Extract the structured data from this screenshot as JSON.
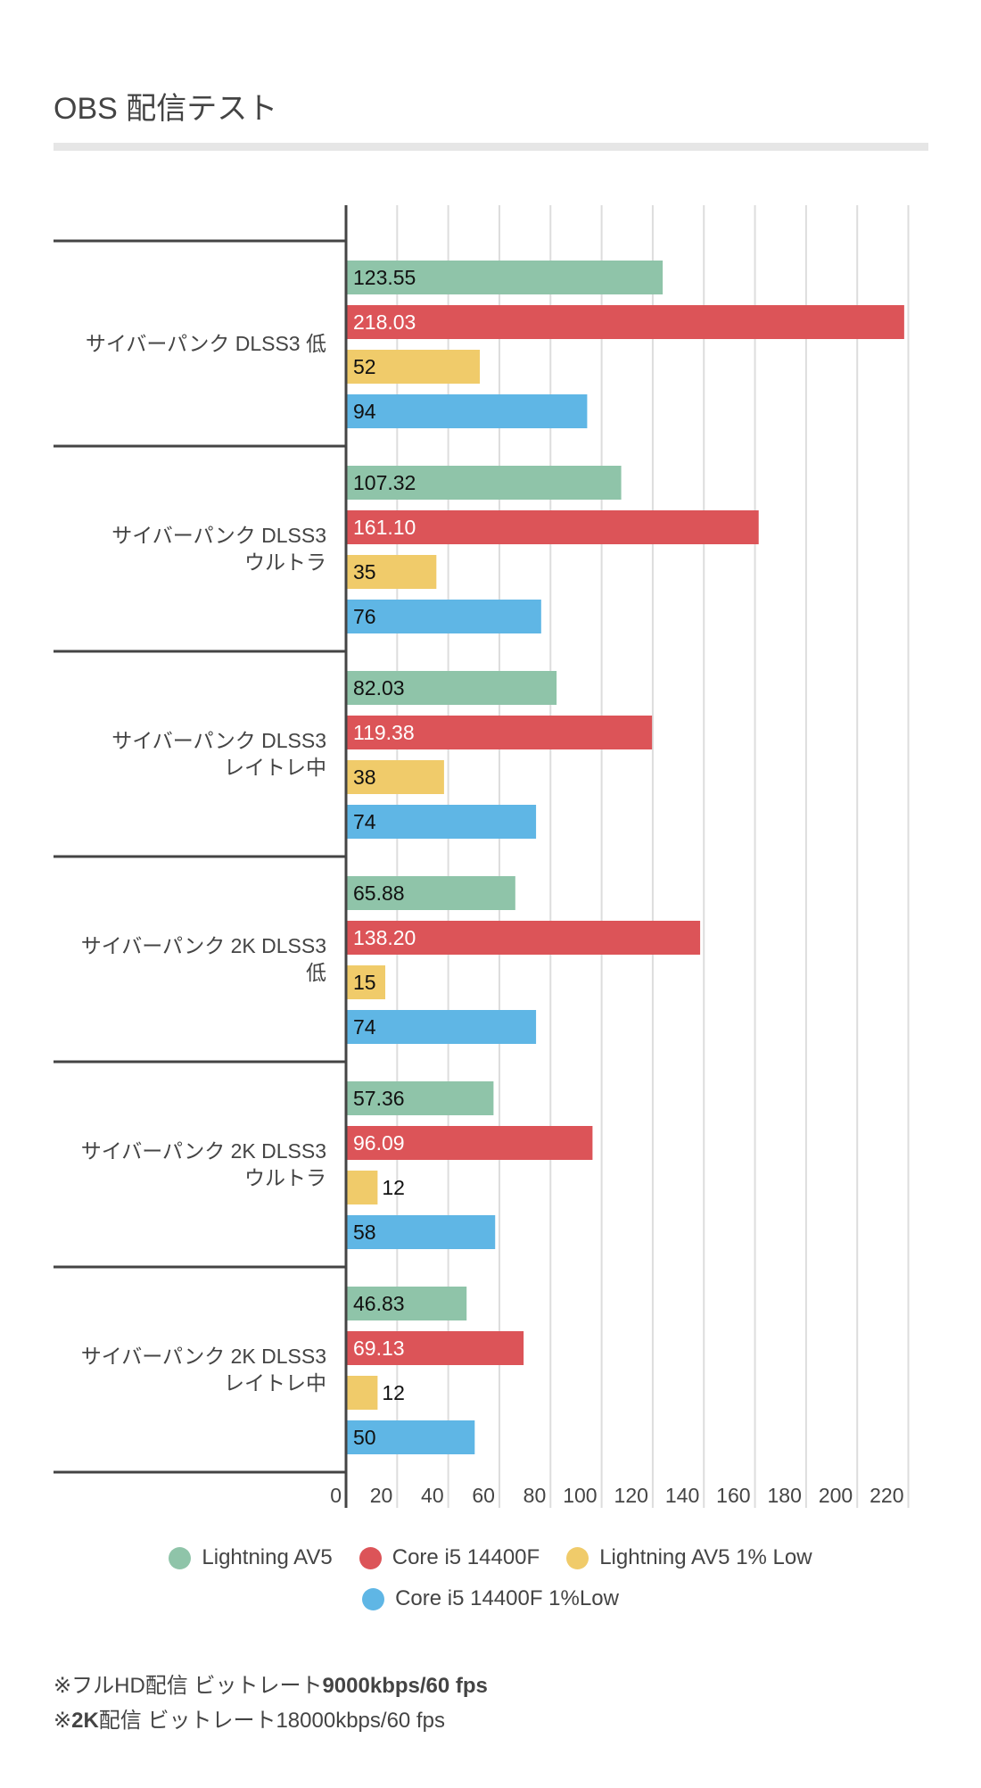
{
  "title": "OBS 配信テスト",
  "colors": {
    "series": [
      "#8fc4a9",
      "#dc5458",
      "#f0cb6a",
      "#5fb6e5"
    ],
    "axis": "#444444",
    "grid": "#dddddd",
    "title_rule": "#e6e6e6"
  },
  "chart_data": {
    "type": "bar",
    "orientation": "horizontal",
    "title": "OBS 配信テスト",
    "categories": [
      [
        "サイバーパンク DLSS3 低"
      ],
      [
        "サイバーパンク DLSS3",
        "ウルトラ"
      ],
      [
        "サイバーパンク DLSS3",
        "レイトレ中"
      ],
      [
        "サイバーパンク 2K DLSS3",
        "低"
      ],
      [
        "サイバーパンク 2K DLSS3",
        "ウルトラ"
      ],
      [
        "サイバーパンク 2K DLSS3",
        "レイトレ中"
      ]
    ],
    "series": [
      {
        "name": "Lightning AV5",
        "values": [
          123.55,
          107.32,
          82.03,
          65.88,
          57.36,
          46.83
        ],
        "labels": [
          "123.55",
          "107.32",
          "82.03",
          "65.88",
          "57.36",
          "46.83"
        ]
      },
      {
        "name": "Core i5 14400F",
        "values": [
          218.03,
          161.1,
          119.38,
          138.2,
          96.09,
          69.13
        ],
        "labels": [
          "218.03",
          "161.10",
          "119.38",
          "138.20",
          "96.09",
          "69.13"
        ]
      },
      {
        "name": "Lightning AV5 1% Low",
        "values": [
          52,
          35,
          38,
          15,
          12,
          12
        ],
        "labels": [
          "52",
          "35",
          "38",
          "15",
          "12",
          "12"
        ]
      },
      {
        "name": "Core i5 14400F 1%Low",
        "values": [
          94,
          76,
          74,
          74,
          58,
          50
        ],
        "labels": [
          "94",
          "76",
          "74",
          "74",
          "58",
          "50"
        ]
      }
    ],
    "xlim": [
      0,
      220
    ],
    "xticks": [
      0,
      20,
      40,
      60,
      80,
      100,
      120,
      140,
      160,
      180,
      200,
      220
    ],
    "xtick_labels": [
      "0",
      "20",
      "40",
      "60",
      "80",
      "100",
      "120",
      "140",
      "160",
      "180",
      "200",
      "220"
    ],
    "xlabel": "",
    "ylabel": "",
    "grid": true,
    "legend_position": "bottom-center"
  },
  "legend": {
    "items": [
      {
        "label": "Lightning AV5"
      },
      {
        "label": "Core i5 14400F"
      },
      {
        "label": "Lightning AV5 1% Low"
      },
      {
        "label": "Core i5 14400F 1%Low"
      }
    ]
  },
  "notes": {
    "line1": {
      "prefix": "※フルHD配信 ビットレート",
      "bold": "9000kbps/60 fps"
    },
    "line2": {
      "mark": "※",
      "bold": "2K",
      "rest": "配信 ビットレート18000kbps/60 fps"
    }
  }
}
